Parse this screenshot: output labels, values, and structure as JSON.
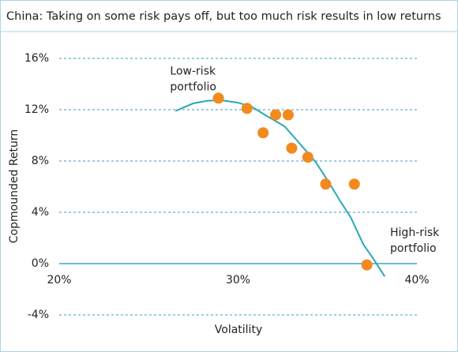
{
  "chart_data": {
    "type": "scatter",
    "title": "China: Taking on some risk pays off, but too much risk results in low returns",
    "x_label": "Volatility",
    "y_label": "Copmounded  Return",
    "xlim": [
      20,
      40
    ],
    "ylim": [
      -4,
      16
    ],
    "xticks": [
      {
        "value": 20,
        "label": "20%"
      },
      {
        "value": 30,
        "label": "30%"
      },
      {
        "value": 40,
        "label": "40%"
      }
    ],
    "yticks": [
      {
        "value": 16,
        "label": "16%"
      },
      {
        "value": 12,
        "label": "12%"
      },
      {
        "value": 8,
        "label": "8%"
      },
      {
        "value": 4,
        "label": "4%"
      },
      {
        "value": 0,
        "label": "0%"
      },
      {
        "value": -4,
        "label": "-4%"
      }
    ],
    "grid": true,
    "scatter": {
      "color": "#f28a1e",
      "x": [
        28.9,
        30.5,
        31.4,
        32.1,
        32.8,
        33.0,
        33.9,
        34.9,
        36.5,
        37.2
      ],
      "values": [
        12.9,
        12.1,
        10.2,
        11.6,
        11.6,
        9.0,
        8.3,
        6.2,
        6.2,
        -0.1
      ]
    },
    "curve": {
      "color": "#2aa8b8",
      "x": [
        26.5,
        27.5,
        28.3,
        29.05,
        30.0,
        30.8,
        31.5,
        32.6,
        33.3,
        34.35,
        35.0,
        35.7,
        36.3,
        37.0,
        37.6,
        38.2
      ],
      "values": [
        11.9,
        12.5,
        12.7,
        12.74,
        12.55,
        12.2,
        11.6,
        10.7,
        9.6,
        7.9,
        6.5,
        4.9,
        3.6,
        1.5,
        0.3,
        -1.0
      ]
    },
    "annotations": [
      {
        "lines": [
          "Low-risk",
          "portfolio"
        ],
        "x": 26.2,
        "y": 15.0
      },
      {
        "lines": [
          "High-risk",
          "portfolio"
        ],
        "x": 38.5,
        "y": 2.4
      }
    ]
  }
}
